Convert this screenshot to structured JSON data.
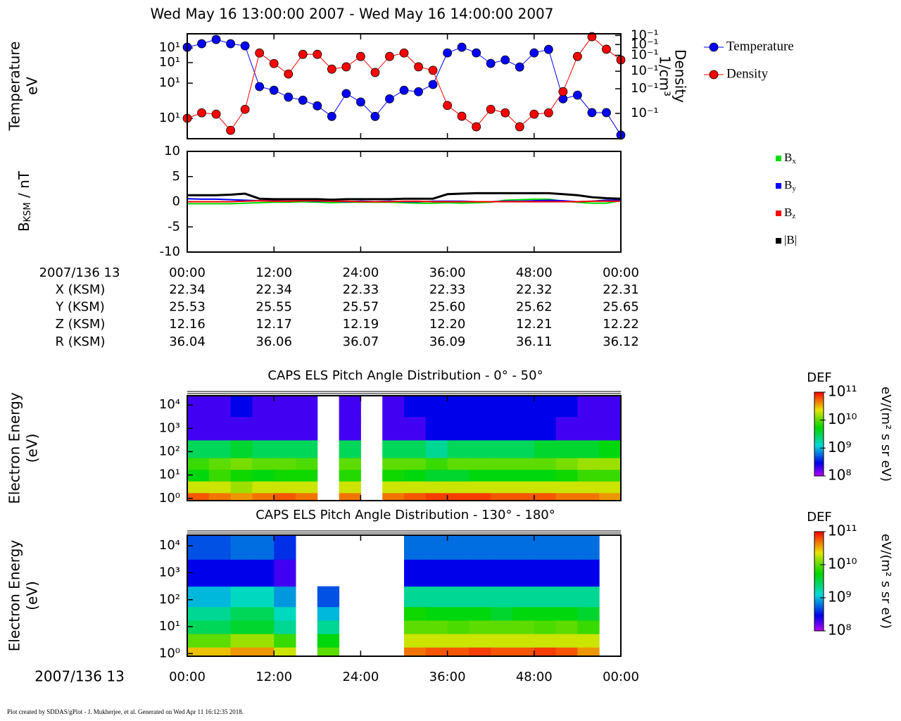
{
  "title": "Wed May 16 13:00:00 2007 - Wed May 16 14:00:00 2007",
  "chart_data": [
    {
      "type": "line",
      "log": true,
      "markers": true,
      "legend": "right",
      "ylabel": [
        "Temperature",
        "eV"
      ],
      "y2label": [
        "Density",
        "1/cm³"
      ],
      "xlim": [
        0,
        60
      ],
      "x": [
        0,
        2,
        4,
        6,
        8,
        10,
        12,
        14,
        16,
        18,
        20,
        22,
        24,
        26,
        28,
        30,
        32,
        34,
        36,
        38,
        40,
        42,
        44,
        46,
        48,
        50,
        52,
        54,
        56,
        58,
        60
      ],
      "ylim": [
        6.7,
        52.9
      ],
      "yticks": [
        {
          "value": 10,
          "label": "10¹"
        },
        {
          "value": 20,
          "label": "10¹"
        },
        {
          "value": 30,
          "label": "10¹"
        },
        {
          "value": 40,
          "label": "10¹"
        }
      ],
      "y2lim": [
        0.066,
        0.37
      ],
      "y2ticks": [
        {
          "value": 0.1,
          "label": "10⁻¹"
        },
        {
          "value": 0.15,
          "label": "10⁻¹"
        },
        {
          "value": 0.2,
          "label": "10⁻¹"
        },
        {
          "value": 0.26,
          "label": "10⁻¹"
        },
        {
          "value": 0.31,
          "label": "10⁻¹"
        },
        {
          "value": 0.36,
          "label": "10⁻¹"
        }
      ],
      "series": [
        {
          "name": "Temperature",
          "color": "#0000ff",
          "values": [
            40.6,
            43.5,
            47.3,
            43.5,
            41.7,
            18.7,
            17.4,
            15.2,
            14.3,
            12.8,
            10.4,
            16.3,
            13.8,
            10.4,
            14.7,
            17.4,
            16.9,
            19.5,
            36.3,
            40.6,
            36.3,
            29.5,
            31.6,
            27.5,
            36.3,
            38.9,
            14.7,
            15.8,
            11.2,
            11.2,
            7.2
          ]
        },
        {
          "name": "Density",
          "color": "#ff0000",
          "axis": "y2",
          "values": [
            0.0923,
            0.101,
            0.0988,
            0.0757,
            0.107,
            0.27,
            0.227,
            0.191,
            0.264,
            0.264,
            0.207,
            0.215,
            0.255,
            0.196,
            0.255,
            0.27,
            0.215,
            0.203,
            0.114,
            0.0955,
            0.0803,
            0.107,
            0.101,
            0.0803,
            0.0988,
            0.101,
            0.143,
            0.255,
            0.353,
            0.287,
            0.241
          ]
        }
      ]
    },
    {
      "type": "line",
      "log": false,
      "legend": "right",
      "ylabel": [
        "B",
        "KSM",
        " / nT"
      ],
      "xlim": [
        0,
        60
      ],
      "xticks": [
        {
          "value": 0,
          "label": "00:00"
        },
        {
          "value": 12,
          "label": "12:00"
        },
        {
          "value": 24,
          "label": "24:00"
        },
        {
          "value": 36,
          "label": "36:00"
        },
        {
          "value": 48,
          "label": "48:00"
        },
        {
          "value": 60,
          "label": "00:00"
        }
      ],
      "x": [
        0,
        2,
        4,
        6,
        8,
        10,
        12,
        14,
        16,
        18,
        20,
        22,
        24,
        26,
        28,
        30,
        32,
        34,
        36,
        38,
        40,
        42,
        44,
        46,
        48,
        50,
        52,
        54,
        56,
        58,
        60
      ],
      "ylim": [
        -10,
        10
      ],
      "yticks": [
        -10,
        -5,
        0,
        5,
        10
      ],
      "series": [
        {
          "name": "Bx",
          "color": "#00dd00",
          "values": [
            -0.4,
            -0.4,
            -0.4,
            -0.4,
            -0.3,
            -0.2,
            -0.1,
            -0.1,
            0,
            -0.1,
            -0.2,
            -0.1,
            -0.1,
            -0.1,
            -0.1,
            -0.2,
            -0.3,
            -0.3,
            -0.2,
            -0.3,
            -0.2,
            -0.1,
            0.3,
            0.4,
            0.5,
            0.5,
            0.1,
            -0.1,
            -0.3,
            -0.3,
            0.2
          ]
        },
        {
          "name": "By",
          "color": "#0000ff",
          "values": [
            0.6,
            0.5,
            0.5,
            0.4,
            0.3,
            0.2,
            0.2,
            0.1,
            0.2,
            0.1,
            0.1,
            0,
            0.1,
            0,
            0.1,
            0,
            0,
            0.1,
            0.1,
            0.1,
            0,
            0,
            0.1,
            0.1,
            0.2,
            0.3,
            0.2,
            0,
            0.1,
            0.3,
            0.3
          ]
        },
        {
          "name": "Bz",
          "color": "#ff0000",
          "values": [
            0,
            0,
            0,
            0,
            0.1,
            0.2,
            0.1,
            0.1,
            0.2,
            0.2,
            0.1,
            0.1,
            0,
            0,
            0,
            0.1,
            0.1,
            0,
            0,
            0,
            0,
            0,
            0,
            0,
            0,
            0,
            0,
            0,
            0.1,
            0.1,
            0.1
          ]
        },
        {
          "name": "|B|",
          "color": "#000000",
          "values": [
            1.3,
            1.3,
            1.3,
            1.4,
            1.6,
            0.6,
            0.5,
            0.5,
            0.5,
            0.5,
            0.4,
            0.5,
            0.5,
            0.5,
            0.5,
            0.6,
            0.6,
            0.6,
            1.5,
            1.6,
            1.7,
            1.7,
            1.7,
            1.7,
            1.7,
            1.7,
            1.5,
            1.3,
            0.9,
            0.7,
            0.6
          ]
        }
      ]
    },
    {
      "type": "heatmap",
      "log": true,
      "title": "CAPS ELS Pitch Angle Distribution - 0° - 50°",
      "ylabel": [
        "Electron Energy",
        "(eV)"
      ],
      "xlim": [
        0,
        60
      ],
      "xbins": [
        0,
        3,
        6,
        9,
        12,
        15,
        18,
        21,
        24,
        27,
        30,
        33,
        36,
        39,
        42,
        45,
        48,
        51,
        54,
        57,
        60
      ],
      "y": [
        1,
        3,
        10,
        30,
        100,
        1000,
        10000
      ],
      "ylim": [
        0.8,
        25000
      ],
      "yticks": [
        {
          "value": 1,
          "label": "10⁰"
        },
        {
          "value": 10,
          "label": "10¹"
        },
        {
          "value": 100,
          "label": "10²"
        },
        {
          "value": 1000,
          "label": "10³"
        },
        {
          "value": 10000,
          "label": "10⁴"
        }
      ],
      "z": [
        [
          60000000000.0,
          20000000000.0,
          5000000000.0,
          8000000000.0,
          3000000000.0,
          200000000.0,
          200000000.0
        ],
        [
          50000000000.0,
          20000000000.0,
          8000000000.0,
          10000000000.0,
          3000000000.0,
          200000000.0,
          200000000.0
        ],
        [
          40000000000.0,
          15000000000.0,
          6000000000.0,
          12000000000.0,
          4000000000.0,
          200000000.0,
          300000000.0
        ],
        [
          50000000000.0,
          20000000000.0,
          5000000000.0,
          10000000000.0,
          3000000000.0,
          200000000.0,
          200000000.0
        ],
        [
          60000000000.0,
          20000000000.0,
          6000000000.0,
          10000000000.0,
          3000000000.0,
          200000000.0,
          200000000.0
        ],
        [
          50000000000.0,
          20000000000.0,
          6000000000.0,
          9000000000.0,
          3000000000.0,
          200000000.0,
          200000000.0
        ],
        [
          null,
          null,
          null,
          null,
          null,
          null,
          null
        ],
        [
          50000000000.0,
          20000000000.0,
          7000000000.0,
          10000000000.0,
          3000000000.0,
          200000000.0,
          200000000.0
        ],
        [
          null,
          null,
          null,
          null,
          null,
          null,
          null
        ],
        [
          50000000000.0,
          20000000000.0,
          6000000000.0,
          10000000000.0,
          3000000000.0,
          200000000.0,
          200000000.0
        ],
        [
          60000000000.0,
          20000000000.0,
          5000000000.0,
          10000000000.0,
          3000000000.0,
          200000000.0,
          300000000.0
        ],
        [
          70000000000.0,
          20000000000.0,
          4000000000.0,
          8000000000.0,
          2000000000.0,
          300000000.0,
          300000000.0
        ],
        [
          70000000000.0,
          20000000000.0,
          4000000000.0,
          10000000000.0,
          3000000000.0,
          300000000.0,
          300000000.0
        ],
        [
          70000000000.0,
          20000000000.0,
          5000000000.0,
          10000000000.0,
          3000000000.0,
          300000000.0,
          300000000.0
        ],
        [
          60000000000.0,
          20000000000.0,
          5000000000.0,
          10000000000.0,
          3000000000.0,
          300000000.0,
          300000000.0
        ],
        [
          60000000000.0,
          20000000000.0,
          5000000000.0,
          10000000000.0,
          3000000000.0,
          300000000.0,
          300000000.0
        ],
        [
          60000000000.0,
          20000000000.0,
          5000000000.0,
          10000000000.0,
          4000000000.0,
          300000000.0,
          300000000.0
        ],
        [
          50000000000.0,
          20000000000.0,
          6000000000.0,
          12000000000.0,
          4000000000.0,
          200000000.0,
          300000000.0
        ],
        [
          50000000000.0,
          20000000000.0,
          8000000000.0,
          15000000000.0,
          4000000000.0,
          200000000.0,
          200000000.0
        ],
        [
          40000000000.0,
          20000000000.0,
          8000000000.0,
          15000000000.0,
          5000000000.0,
          200000000.0,
          200000000.0
        ]
      ],
      "colorbar": {
        "label": "DEF",
        "unit": "eV/(m² s sr eV)",
        "zlim": [
          100000000.0,
          100000000000.0
        ],
        "zticks": [
          {
            "value": 100000000.0,
            "label": "10⁸"
          },
          {
            "value": 1000000000.0,
            "label": "10⁹"
          },
          {
            "value": 10000000000.0,
            "label": "10¹⁰"
          },
          {
            "value": 100000000000.0,
            "label": "10¹¹"
          }
        ]
      }
    },
    {
      "type": "heatmap",
      "log": true,
      "title": "CAPS ELS Pitch Angle Distribution - 130° - 180°",
      "ylabel": [
        "Electron Energy",
        "(eV)"
      ],
      "xlabel": "2007/136 13",
      "xlim": [
        0,
        60
      ],
      "xticks": [
        {
          "value": 0,
          "label": "00:00"
        },
        {
          "value": 12,
          "label": "12:00"
        },
        {
          "value": 24,
          "label": "24:00"
        },
        {
          "value": 36,
          "label": "36:00"
        },
        {
          "value": 48,
          "label": "48:00"
        },
        {
          "value": 60,
          "label": "00:00"
        }
      ],
      "xbins": [
        0,
        3,
        6,
        9,
        12,
        15,
        18,
        21,
        24,
        27,
        30,
        33,
        36,
        39,
        42,
        45,
        48,
        51,
        54,
        57,
        60
      ],
      "y": [
        1,
        3,
        10,
        30,
        100,
        1000,
        10000
      ],
      "ylim": [
        0.8,
        25000
      ],
      "yticks": [
        {
          "value": 1,
          "label": "10⁰"
        },
        {
          "value": 10,
          "label": "10¹"
        },
        {
          "value": 100,
          "label": "10²"
        },
        {
          "value": 1000,
          "label": "10³"
        },
        {
          "value": 10000,
          "label": "10⁴"
        }
      ],
      "z": [
        [
          30000000000.0,
          10000000000.0,
          3000000000.0,
          2000000000.0,
          1000000000.0,
          300000000.0,
          500000000.0
        ],
        [
          30000000000.0,
          10000000000.0,
          3000000000.0,
          2000000000.0,
          1000000000.0,
          300000000.0,
          500000000.0
        ],
        [
          40000000000.0,
          15000000000.0,
          4000000000.0,
          3000000000.0,
          1500000000.0,
          300000000.0,
          600000000.0
        ],
        [
          40000000000.0,
          15000000000.0,
          4000000000.0,
          3000000000.0,
          1500000000.0,
          300000000.0,
          600000000.0
        ],
        [
          20000000000.0,
          8000000000.0,
          2000000000.0,
          1500000000.0,
          800000000.0,
          200000000.0,
          400000000.0
        ],
        [
          null,
          null,
          null,
          null,
          null,
          null,
          null
        ],
        [
          10000000000.0,
          5000000000.0,
          2000000000.0,
          1000000000.0,
          500000000.0,
          null,
          null
        ],
        [
          null,
          null,
          null,
          null,
          null,
          null,
          null
        ],
        [
          null,
          null,
          null,
          null,
          null,
          null,
          null
        ],
        [
          null,
          null,
          null,
          null,
          null,
          null,
          null
        ],
        [
          50000000000.0,
          20000000000.0,
          10000000000.0,
          6000000000.0,
          2000000000.0,
          300000000.0,
          600000000.0
        ],
        [
          60000000000.0,
          20000000000.0,
          10000000000.0,
          5000000000.0,
          2000000000.0,
          300000000.0,
          600000000.0
        ],
        [
          60000000000.0,
          20000000000.0,
          9000000000.0,
          5000000000.0,
          2000000000.0,
          300000000.0,
          600000000.0
        ],
        [
          70000000000.0,
          20000000000.0,
          10000000000.0,
          5000000000.0,
          2000000000.0,
          300000000.0,
          600000000.0
        ],
        [
          60000000000.0,
          20000000000.0,
          10000000000.0,
          4000000000.0,
          2000000000.0,
          300000000.0,
          600000000.0
        ],
        [
          60000000000.0,
          20000000000.0,
          10000000000.0,
          5000000000.0,
          2000000000.0,
          300000000.0,
          600000000.0
        ],
        [
          70000000000.0,
          20000000000.0,
          9000000000.0,
          5000000000.0,
          2000000000.0,
          300000000.0,
          600000000.0
        ],
        [
          60000000000.0,
          20000000000.0,
          10000000000.0,
          5000000000.0,
          2000000000.0,
          300000000.0,
          600000000.0
        ],
        [
          40000000000.0,
          20000000000.0,
          8000000000.0,
          4000000000.0,
          2000000000.0,
          300000000.0,
          600000000.0
        ],
        [
          null,
          null,
          null,
          null,
          null,
          null,
          null
        ]
      ],
      "colorbar": {
        "label": "DEF",
        "unit": "eV/(m² s sr eV)",
        "zlim": [
          100000000.0,
          100000000000.0
        ],
        "zticks": [
          {
            "value": 100000000.0,
            "label": "10⁸"
          },
          {
            "value": 1000000000.0,
            "label": "10⁹"
          },
          {
            "value": 10000000000.0,
            "label": "10¹⁰"
          },
          {
            "value": 100000000000.0,
            "label": "10¹¹"
          }
        ]
      }
    }
  ],
  "ephemeris": {
    "label": "2007/136 13",
    "rows": [
      {
        "name": "X (KSM)",
        "values": [
          "22.34",
          "22.34",
          "22.33",
          "22.33",
          "22.32",
          "22.31"
        ]
      },
      {
        "name": "Y (KSM)",
        "values": [
          "25.53",
          "25.55",
          "25.57",
          "25.60",
          "25.62",
          "25.65"
        ]
      },
      {
        "name": "Z (KSM)",
        "values": [
          "12.16",
          "12.17",
          "12.19",
          "12.20",
          "12.21",
          "12.22"
        ]
      },
      {
        "name": "R (KSM)",
        "values": [
          "36.04",
          "36.06",
          "36.07",
          "36.09",
          "36.11",
          "36.12"
        ]
      }
    ]
  },
  "footer": "Plot created by SDDAS/gPlot - J. Mukherjee, et al.  Generated on Wed Apr 11 16:12:35 2018."
}
